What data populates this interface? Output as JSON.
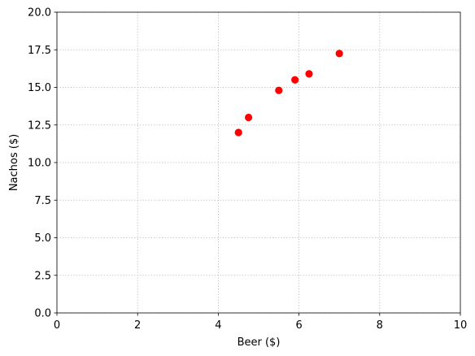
{
  "chart_data": {
    "type": "scatter",
    "title": "",
    "xlabel": "Beer ($)",
    "ylabel": "Nachos ($)",
    "xlim": [
      0,
      10
    ],
    "ylim": [
      0,
      20
    ],
    "xticks": [
      0,
      2,
      4,
      6,
      8,
      10
    ],
    "xtick_labels": [
      "0",
      "2",
      "4",
      "6",
      "8",
      "10"
    ],
    "yticks": [
      0,
      2.5,
      5,
      7.5,
      10,
      12.5,
      15,
      17.5,
      20
    ],
    "ytick_labels": [
      "0.0",
      "2.5",
      "5.0",
      "7.5",
      "10.0",
      "12.5",
      "15.0",
      "17.5",
      "20.0"
    ],
    "grid": true,
    "legend": "none",
    "series": [
      {
        "color": "#ff0000",
        "marker": "circle",
        "points": [
          {
            "x": 4.5,
            "y": 12.0
          },
          {
            "x": 4.75,
            "y": 13.0
          },
          {
            "x": 5.5,
            "y": 14.8
          },
          {
            "x": 5.9,
            "y": 15.5
          },
          {
            "x": 6.25,
            "y": 15.9
          },
          {
            "x": 7.0,
            "y": 17.25
          }
        ]
      }
    ]
  }
}
